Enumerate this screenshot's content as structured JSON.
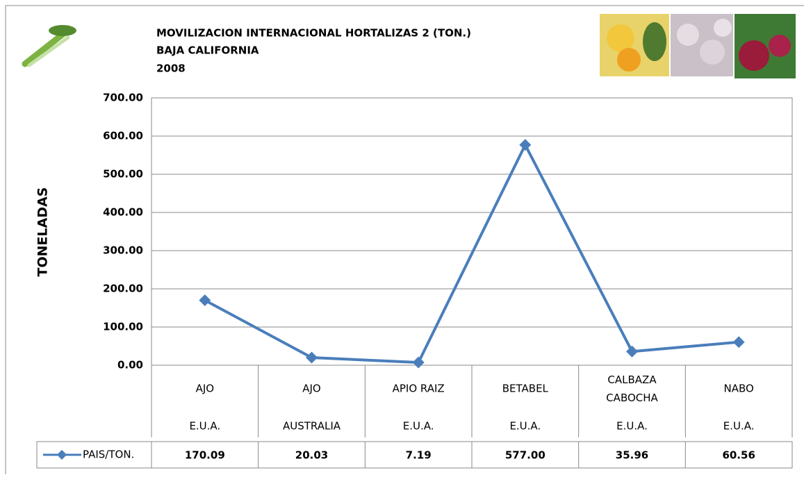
{
  "chart_data": {
    "type": "line",
    "title": "MOVILIZACION INTERNACIONAL HORTALIZAS 2 (TON.)",
    "subtitle": "BAJA CALIFORNIA",
    "year": "2008",
    "y_label": "TONELADAS",
    "categories": [
      "AJO",
      "AJO",
      "APIO RAIZ",
      "BETABEL",
      "CALBAZA CABOCHA",
      "NABO"
    ],
    "countries": [
      "E.U.A.",
      "AUSTRALIA",
      "E.U.A.",
      "E.U.A.",
      "E.U.A.",
      "E.U.A."
    ],
    "series": [
      {
        "name": "PAIS/TON.",
        "color": "#4a7ebb",
        "values": [
          170.09,
          20.03,
          7.19,
          577.0,
          35.96,
          60.56
        ],
        "value_labels": [
          "170.09",
          "20.03",
          "7.19",
          "577.00",
          "35.96",
          "60.56"
        ]
      }
    ],
    "ylim": [
      0,
      700
    ],
    "yticks": [
      {
        "value": 0,
        "label": "0.00"
      },
      {
        "value": 100,
        "label": "100.00"
      },
      {
        "value": 200,
        "label": "200.00"
      },
      {
        "value": 300,
        "label": "300.00"
      },
      {
        "value": 400,
        "label": "400.00"
      },
      {
        "value": 500,
        "label": "500.00"
      },
      {
        "value": 600,
        "label": "600.00"
      },
      {
        "value": 700,
        "label": "700.00"
      }
    ],
    "grid": true
  }
}
